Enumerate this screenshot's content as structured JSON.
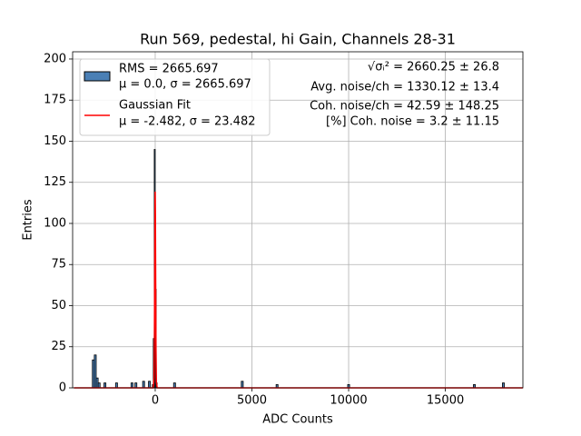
{
  "chart_data": {
    "type": "histogram",
    "title": "Run 569, pedestal, hi Gain, Channels 28-31",
    "xlabel": "ADC Counts",
    "ylabel": "Entries",
    "xlim": [
      -4270,
      19010
    ],
    "ylim": [
      0,
      204.4
    ],
    "xticks": [
      0,
      5000,
      10000,
      15000
    ],
    "yticks": [
      0,
      25,
      50,
      75,
      100,
      125,
      150,
      175,
      200
    ],
    "grid": true,
    "legend": "upper left",
    "color": "#4a7fb5",
    "edgecolor": "#000000",
    "legend_label": [
      "RMS = 2665.697",
      "μ = 0.0, σ = 2665.697"
    ],
    "bins": [
      -3250,
      -3150,
      -3050,
      -2950,
      -2850,
      -2650,
      -2550,
      -2050,
      -1950,
      -1250,
      -1150,
      -1050,
      -950,
      -650,
      -550,
      -350,
      -250,
      -150,
      -100,
      -50,
      0,
      50,
      100,
      950,
      1050,
      4450,
      4550,
      6250,
      6350,
      9950,
      10050,
      16450,
      16550,
      17950,
      18050
    ],
    "counts": [
      17,
      20,
      6,
      3,
      0,
      3,
      0,
      3,
      0,
      3,
      0,
      3,
      0,
      4,
      0,
      4,
      0,
      2,
      30,
      145,
      60,
      3,
      0,
      3,
      0,
      4,
      0,
      2,
      0,
      2,
      0,
      2,
      0,
      3
    ],
    "fit": {
      "legend_label": [
        "Gaussian Fit",
        "μ = -2.482, σ = 23.482"
      ],
      "color": "#ff0000",
      "x": [
        -4200,
        -100,
        -60,
        -40,
        -30,
        -20,
        -10,
        0,
        10,
        20,
        30,
        40,
        60,
        100,
        19000
      ],
      "values": [
        0,
        0.02,
        5.98,
        33.5,
        60.4,
        90.9,
        114,
        119.3,
        104.2,
        75.9,
        46.1,
        23.4,
        3.5,
        0,
        0
      ]
    },
    "annotations": [
      "√σᵢ² = 2660.25 ± 26.8",
      "Avg. noise/ch = 1330.12 ± 13.4",
      "Coh. noise/ch = 42.59 ± 148.25",
      "[%] Coh. noise = 3.2 ± 11.15"
    ]
  }
}
